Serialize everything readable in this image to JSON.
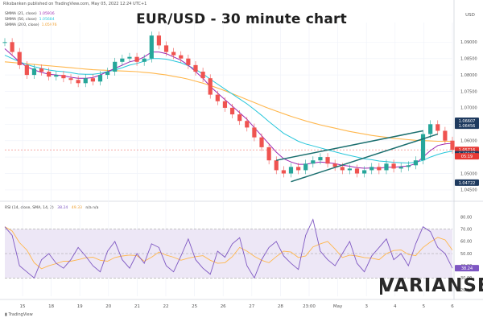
{
  "header": {
    "publisher_line": "Riksbanken published on TradingView.com, May 05, 2022 12:24 UTC+1"
  },
  "footer": {
    "label": "TradingView"
  },
  "brand": {
    "logo_text": "VARIANSE"
  },
  "chart_data": {
    "type": "line",
    "title": "EUR/USD - 30 minute chart",
    "currency": "USD",
    "price_axis": {
      "ticks": [
        1.09,
        1.085,
        1.08,
        1.075,
        1.07,
        1.065,
        1.06,
        1.055,
        1.05,
        1.045
      ],
      "ylim": [
        1.044,
        1.094
      ],
      "labels": [
        {
          "value": 1.06607,
          "text": "1.06607",
          "bg": "#1e3a5f",
          "color": "#ffffff"
        },
        {
          "value": 1.06456,
          "text": "1.06456",
          "bg": "#1e3a5f",
          "color": "#ffffff"
        },
        {
          "value": 1.05716,
          "text": "1.05716",
          "bg": "#e53935",
          "color": "#ffffff"
        },
        {
          "value": 1.05587,
          "text": "1.05587",
          "bg": "#1e3a5f",
          "color": "#ffffff"
        },
        {
          "value": 1.04722,
          "text": "1.04722",
          "bg": "#1e3a5f",
          "color": "#ffffff"
        }
      ],
      "countdown": "05:19"
    },
    "x_axis": {
      "ticks": [
        "15",
        "18",
        "19",
        "20",
        "21",
        "22",
        "25",
        "26",
        "27",
        "28",
        "23:00",
        "May",
        "3",
        "4",
        "5",
        "6"
      ]
    },
    "indicators": [
      {
        "name": "SMMA (21, close)",
        "value": "1.05916",
        "color": "#9c27b0"
      },
      {
        "name": "SMMA (50, close)",
        "value": "1.05684",
        "color": "#26c6da"
      },
      {
        "name": "SMMA (200, close)",
        "value": "1.05976",
        "color": "#ffb74d"
      }
    ],
    "price_series": {
      "color": "#26a69a",
      "down_color": "#ef5350",
      "values": [
        1.09,
        1.087,
        1.083,
        1.08,
        1.082,
        1.081,
        1.0795,
        1.08,
        1.079,
        1.0785,
        1.0775,
        1.079,
        1.078,
        1.08,
        1.081,
        1.084,
        1.085,
        1.0855,
        1.084,
        1.085,
        1.092,
        1.089,
        1.087,
        1.086,
        1.085,
        1.083,
        1.081,
        1.079,
        1.074,
        1.072,
        1.07,
        1.068,
        1.066,
        1.064,
        1.061,
        1.058,
        1.054,
        1.051,
        1.05,
        1.052,
        1.051,
        1.053,
        1.054,
        1.055,
        1.053,
        1.052,
        1.051,
        1.0515,
        1.05,
        1.051,
        1.052,
        1.051,
        1.053,
        1.0515,
        1.052,
        1.0525,
        1.054,
        1.062,
        1.065,
        1.063,
        1.06,
        1.0572
      ]
    },
    "smma21": [
      1.088,
      1.086,
      1.084,
      1.0825,
      1.0815,
      1.0808,
      1.0802,
      1.08,
      1.0797,
      1.0793,
      1.079,
      1.079,
      1.0792,
      1.08,
      1.081,
      1.082,
      1.083,
      1.084,
      1.0845,
      1.0855,
      1.087,
      1.087,
      1.0865,
      1.0855,
      1.0845,
      1.083,
      1.081,
      1.079,
      1.0765,
      1.0745,
      1.0725,
      1.0705,
      1.0685,
      1.0665,
      1.064,
      1.0615,
      1.059,
      1.0565,
      1.0545,
      1.0535,
      1.0528,
      1.0528,
      1.0532,
      1.0535,
      1.0533,
      1.053,
      1.0525,
      1.0522,
      1.0518,
      1.0516,
      1.0517,
      1.0516,
      1.0519,
      1.0519,
      1.0521,
      1.0523,
      1.053,
      1.055,
      1.057,
      1.0585,
      1.059,
      1.0592
    ],
    "smma50": [
      1.086,
      1.085,
      1.084,
      1.0832,
      1.0825,
      1.082,
      1.0815,
      1.0812,
      1.081,
      1.0807,
      1.0803,
      1.0802,
      1.0802,
      1.0805,
      1.081,
      1.0815,
      1.0822,
      1.083,
      1.0835,
      1.0842,
      1.085,
      1.085,
      1.0848,
      1.0843,
      1.0837,
      1.0828,
      1.0817,
      1.0803,
      1.0787,
      1.0772,
      1.0757,
      1.0742,
      1.0727,
      1.0712,
      1.0695,
      1.0677,
      1.0658,
      1.064,
      1.0622,
      1.061,
      1.0598,
      1.059,
      1.0584,
      1.0578,
      1.0572,
      1.0566,
      1.056,
      1.0555,
      1.055,
      1.0545,
      1.0542,
      1.0538,
      1.0536,
      1.0534,
      1.0533,
      1.0532,
      1.0534,
      1.054,
      1.055,
      1.0558,
      1.0564,
      1.0568
    ],
    "smma200": [
      1.084,
      1.0838,
      1.0836,
      1.0834,
      1.0832,
      1.083,
      1.0828,
      1.0826,
      1.0824,
      1.0822,
      1.082,
      1.0818,
      1.0816,
      1.0815,
      1.0814,
      1.0813,
      1.0812,
      1.0811,
      1.081,
      1.0808,
      1.0806,
      1.0803,
      1.08,
      1.0796,
      1.0792,
      1.0787,
      1.0781,
      1.0775,
      1.0768,
      1.076,
      1.0752,
      1.0743,
      1.0734,
      1.0725,
      1.0716,
      1.0707,
      1.0698,
      1.069,
      1.0682,
      1.0674,
      1.0667,
      1.066,
      1.0654,
      1.0648,
      1.0643,
      1.0638,
      1.0633,
      1.0628,
      1.0624,
      1.062,
      1.0616,
      1.0613,
      1.061,
      1.0607,
      1.0605,
      1.0603,
      1.0601,
      1.06,
      1.0599,
      1.0598,
      1.0598,
      1.0598
    ],
    "trendlines": [
      {
        "from": [
          37,
          1.054
        ],
        "to": [
          57,
          1.063
        ]
      },
      {
        "from": [
          39,
          1.0475
        ],
        "to": [
          59,
          1.062
        ]
      }
    ],
    "rsi": {
      "legend": "RSI (14, close, SMA, 14, 2)",
      "value1": "38.24",
      "value2": "49.33",
      "extra": "n/a  n/a",
      "ticks": [
        80,
        70,
        60,
        50,
        40,
        30,
        20
      ],
      "ylim": [
        15,
        85
      ],
      "overbought": 70,
      "oversold": 30,
      "line_color": "#7e57c2",
      "ma_color": "#ffb74d",
      "current_label": "38.24",
      "values": [
        72,
        65,
        40,
        35,
        30,
        45,
        50,
        42,
        38,
        45,
        55,
        48,
        40,
        35,
        52,
        60,
        45,
        38,
        50,
        42,
        58,
        55,
        40,
        35,
        48,
        62,
        45,
        38,
        33,
        52,
        47,
        58,
        63,
        40,
        30,
        45,
        55,
        60,
        48,
        42,
        37,
        65,
        78,
        52,
        45,
        40,
        50,
        60,
        42,
        35,
        48,
        55,
        62,
        45,
        50,
        40,
        58,
        72,
        68,
        55,
        50,
        38
      ]
    }
  }
}
